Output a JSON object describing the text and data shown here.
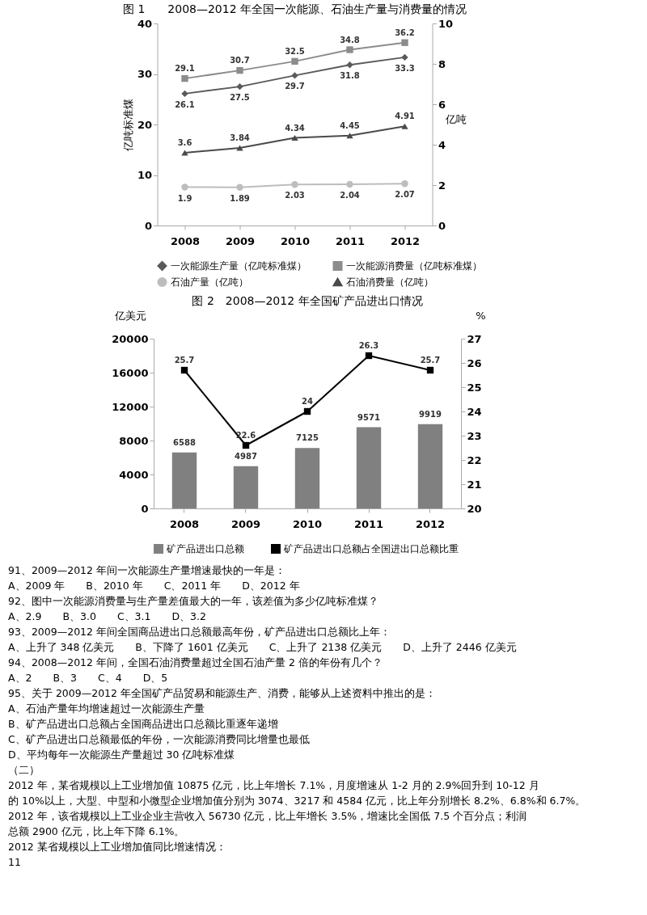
{
  "chart_data": [
    {
      "type": "line",
      "title": "图 1　　2008—2012 年全国一次能源、石油生产量与消费量的情况",
      "ylabel": "亿吨标准煤",
      "y2label": "亿吨",
      "categories": [
        "2008",
        "2009",
        "2010",
        "2011",
        "2012"
      ],
      "series": [
        {
          "name": "一次能源生产量（亿吨标准煤）",
          "color": "#5a5a5a",
          "marker": "diamond",
          "values": [
            26.1,
            27.5,
            29.7,
            31.8,
            33.3
          ]
        },
        {
          "name": "一次能源消费量（亿吨标准煤）",
          "color": "#8c8c8c",
          "marker": "square",
          "values": [
            29.1,
            30.7,
            32.5,
            34.8,
            36.2
          ]
        },
        {
          "name": "石油产量（亿吨）",
          "color": "#bdbdbd",
          "marker": "circle",
          "axis": "y2",
          "values": [
            1.9,
            1.89,
            2.03,
            2.04,
            2.07
          ]
        },
        {
          "name": "石油消费量（亿吨）",
          "color": "#4a4a4a",
          "marker": "triangle",
          "axis": "y2",
          "values": [
            3.6,
            3.84,
            4.34,
            4.45,
            4.91
          ]
        }
      ],
      "ylim": [
        0,
        40
      ],
      "yticks": [
        0,
        10,
        20,
        30,
        40
      ],
      "y2lim": [
        0,
        10
      ],
      "y2ticks": [
        0,
        2,
        4,
        6,
        8,
        10
      ],
      "data_labels": true,
      "legend": "bottom",
      "grid": false
    },
    {
      "type": "bar",
      "title": "图 2　2008—2012 年全国矿产品进出口情况",
      "ylabel": "亿美元",
      "y2label": "%",
      "categories": [
        "2008",
        "2009",
        "2010",
        "2011",
        "2012"
      ],
      "series": [
        {
          "name": "矿产品进出口总额",
          "color": "#808080",
          "values": [
            6588,
            4987,
            7125,
            9571,
            9919
          ]
        },
        {
          "name": "矿产品进出口总额占全国进出口总额比重",
          "type": "line",
          "axis": "y2",
          "color": "#000000",
          "marker": "square",
          "values": [
            25.7,
            22.6,
            24,
            26.3,
            25.7
          ]
        }
      ],
      "ylim": [
        0,
        20000
      ],
      "yticks": [
        0,
        4000,
        8000,
        12000,
        16000,
        20000
      ],
      "y2lim": [
        20,
        27
      ],
      "y2ticks": [
        20,
        21,
        22,
        23,
        24,
        25,
        26,
        27
      ],
      "data_labels": true,
      "legend": "bottom",
      "grid": false,
      "annotations": [
        "91、2009—2012 年间一次能源生产量增速最快的一年是：",
        "A、2009 年　　B、2010 年　　C、2011 年　　D、2012 年",
        "92、图中一次能源消费量与生产量差值最大的一年，该差值为多少亿吨标准煤？",
        "A、2.9　　B、3.0　　C、3.1　　D、3.2",
        "93、2009—2012 年间全国商品进出口总额最高年份，矿产品进出口总额比上年：",
        "A、上升了 348 亿美元　　B、下降了 1601 亿美元　　C、上升了 2138 亿美元　　D、上升了 2446 亿美元",
        "94、2008—2012 年间，全国石油消费量超过全国石油产量 2 倍的年份有几个？",
        "A、2　　B、3　　C、4　　D、5",
        "95、关于 2009—2012 年全国矿产品贸易和能源生产、消费，能够从上述资料中推出的是：",
        "A、石油产量年均增速超过一次能源生产量",
        "B、矿产品进出口总额占全国商品进出口总额比重逐年递增",
        "C、矿产品进出口总额最低的年份，一次能源消费同比增量也最低",
        "D、平均每年一次能源生产量超过 30 亿吨标准煤",
        "（二）",
        "　　2012 年，某省规模以上工业增加值 10875 亿元，比上年增长 7.1%，月度增速从 1-2 月的 2.9%回升到 10-12 月",
        "的 10%以上，大型、中型和小微型企业增加值分别为 3074、3217 和 4584 亿元，比上年分别增长 8.2%、6.8%和 6.7%。",
        "　　2012 年，该省规模以上工业企业主营收入 56730 亿元，比上年增长 3.5%，增速比全国低 7.5 个百分点；利润",
        "总额 2900 亿元，比上年下降 6.1%。",
        "　2012 某省规模以上工业增加值同比增速情况：",
        "11"
      ]
    }
  ]
}
